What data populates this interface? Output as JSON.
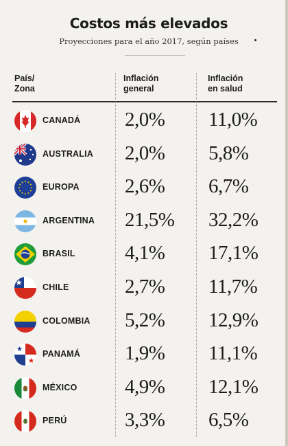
{
  "title": "Costos más elevados",
  "subtitle": "Proyecciones para el año 2017, según países",
  "headers": {
    "country": [
      "País/",
      "Zona"
    ],
    "general": [
      "Inflación",
      "general"
    ],
    "health": [
      "Inflación",
      "en salud"
    ]
  },
  "rows": [
    {
      "country": "CANADÁ",
      "general": "2,0%",
      "health": "11,0%",
      "flag_icon": "canada-flag-icon"
    },
    {
      "country": "AUSTRALIA",
      "general": "2,0%",
      "health": "5,8%",
      "flag_icon": "australia-flag-icon"
    },
    {
      "country": "EUROPA",
      "general": "2,6%",
      "health": "6,7%",
      "flag_icon": "europe-flag-icon"
    },
    {
      "country": "ARGENTINA",
      "general": "21,5%",
      "health": "32,2%",
      "flag_icon": "argentina-flag-icon"
    },
    {
      "country": "BRASIL",
      "general": "4,1%",
      "health": "17,1%",
      "flag_icon": "brazil-flag-icon"
    },
    {
      "country": "CHILE",
      "general": "2,7%",
      "health": "11,7%",
      "flag_icon": "chile-flag-icon"
    },
    {
      "country": "COLOMBIA",
      "general": "5,2%",
      "health": "12,9%",
      "flag_icon": "colombia-flag-icon"
    },
    {
      "country": "PANAMÁ",
      "general": "1,9%",
      "health": "11,1%",
      "flag_icon": "panama-flag-icon"
    },
    {
      "country": "MÉXICO",
      "general": "4,9%",
      "health": "12,1%",
      "flag_icon": "mexico-flag-icon"
    },
    {
      "country": "PERÚ",
      "general": "3,3%",
      "health": "6,5%",
      "flag_icon": "peru-flag-icon"
    }
  ]
}
